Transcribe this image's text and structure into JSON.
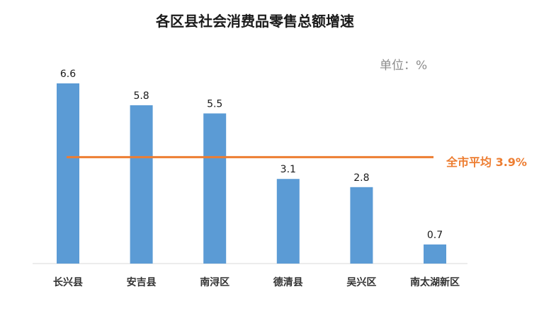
{
  "chart_data": {
    "type": "bar",
    "title": "各区县社会消费品零售总额增速",
    "unit_label": "单位：%",
    "categories": [
      "长兴县",
      "安吉县",
      "南浔区",
      "德清县",
      "吴兴区",
      "南太湖新区"
    ],
    "values": [
      6.6,
      5.8,
      5.5,
      3.1,
      2.8,
      0.7
    ],
    "reference_line": {
      "value": 3.9,
      "label": "全市平均 3.9%"
    },
    "ylim": [
      0,
      7.5
    ],
    "grid": false,
    "colors": {
      "bar": "#5b9bd5",
      "reference_line": "#ed7d31"
    }
  }
}
